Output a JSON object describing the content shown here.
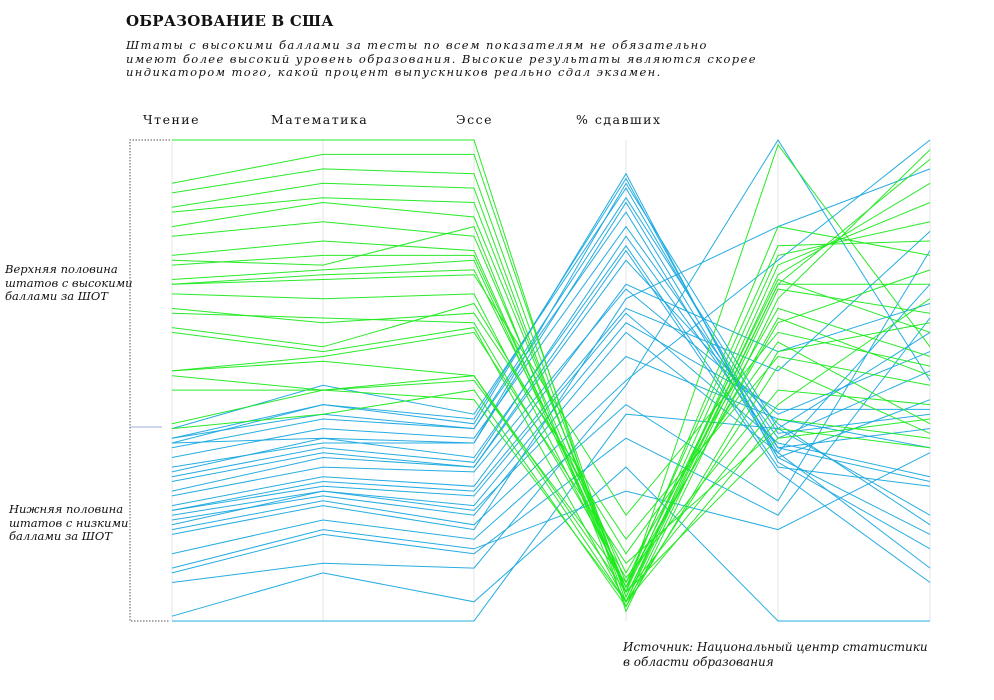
{
  "header": {
    "title": "ОБРАЗОВАНИЕ В США",
    "subtitle_lines": [
      "Штаты с высокими баллами за тесты по всем показателям не обязательно",
      "имеют более высокий уровень образования. Высокие результаты являются скорее",
      "индикатором того, какой процент выпускников реально сдал экзамен."
    ]
  },
  "groups": {
    "top_lines": [
      "Верхняя половина",
      "штатов с высокими",
      "баллами за ШОТ"
    ],
    "bottom_lines": [
      "Нижняя половина",
      "штатов с низкими",
      "баллами за ШОТ"
    ]
  },
  "source_lines": [
    "Источник: Национальный центр статистики",
    "в области образования"
  ],
  "colors": {
    "top_half": "#1ee91e",
    "bottom_half": "#1aa9df",
    "bracket": "#555555",
    "gridline": "#e6e6e6"
  },
  "chart_data": {
    "type": "parallel-coordinates",
    "axes": [
      "Чтение",
      "Математика",
      "Эссе",
      "% сдавших",
      "",
      ""
    ],
    "normalized": true,
    "series": [
      {
        "group": "top",
        "values": [
          0.0,
          0.0,
          0.0,
          0.98,
          0.33,
          0.02
        ]
      },
      {
        "group": "top",
        "values": [
          0.09,
          0.03,
          0.03,
          0.95,
          0.3,
          0.04
        ]
      },
      {
        "group": "top",
        "values": [
          0.11,
          0.06,
          0.07,
          0.95,
          0.28,
          0.09
        ]
      },
      {
        "group": "top",
        "values": [
          0.14,
          0.09,
          0.1,
          0.96,
          0.26,
          0.13
        ]
      },
      {
        "group": "top",
        "values": [
          0.15,
          0.12,
          0.13,
          0.94,
          0.24,
          0.17
        ]
      },
      {
        "group": "top",
        "values": [
          0.18,
          0.13,
          0.16,
          0.92,
          0.22,
          0.21
        ]
      },
      {
        "group": "top",
        "values": [
          0.2,
          0.17,
          0.2,
          0.93,
          0.18,
          0.24
        ]
      },
      {
        "group": "top",
        "values": [
          0.24,
          0.21,
          0.23,
          0.94,
          0.55,
          0.33
        ]
      },
      {
        "group": "top",
        "values": [
          0.25,
          0.26,
          0.18,
          0.97,
          0.31,
          0.36
        ]
      },
      {
        "group": "top",
        "values": [
          0.26,
          0.24,
          0.24,
          0.93,
          0.29,
          0.4
        ]
      },
      {
        "group": "top",
        "values": [
          0.29,
          0.27,
          0.25,
          0.94,
          0.01,
          0.43
        ]
      },
      {
        "group": "top",
        "values": [
          0.3,
          0.28,
          0.27,
          0.9,
          0.35,
          0.45
        ]
      },
      {
        "group": "top",
        "values": [
          0.3,
          0.29,
          0.28,
          0.78,
          0.4,
          0.47
        ]
      },
      {
        "group": "top",
        "values": [
          0.32,
          0.33,
          0.32,
          0.93,
          0.37,
          0.49
        ]
      },
      {
        "group": "top",
        "values": [
          0.35,
          0.38,
          0.36,
          0.83,
          0.45,
          0.51
        ]
      },
      {
        "group": "top",
        "values": [
          0.36,
          0.37,
          0.38,
          0.91,
          0.52,
          0.55
        ]
      },
      {
        "group": "top",
        "values": [
          0.39,
          0.43,
          0.34,
          0.86,
          0.42,
          0.59
        ]
      },
      {
        "group": "top",
        "values": [
          0.4,
          0.44,
          0.39,
          0.96,
          0.58,
          0.62
        ]
      },
      {
        "group": "top",
        "values": [
          0.48,
          0.45,
          0.4,
          0.88,
          0.6,
          0.64
        ]
      },
      {
        "group": "top",
        "values": [
          0.48,
          0.46,
          0.49,
          0.94,
          0.62,
          0.58
        ]
      },
      {
        "group": "top",
        "values": [
          0.49,
          0.52,
          0.49,
          0.96,
          0.47,
          0.61
        ]
      },
      {
        "group": "top",
        "values": [
          0.52,
          0.52,
          0.5,
          0.92,
          0.38,
          0.27
        ]
      },
      {
        "group": "top",
        "values": [
          0.59,
          0.52,
          0.54,
          0.96,
          0.3,
          0.3
        ]
      },
      {
        "group": "top",
        "values": [
          0.6,
          0.57,
          0.52,
          0.97,
          0.44,
          0.38
        ]
      },
      {
        "group": "bottom",
        "values": [
          0.6,
          0.51,
          0.57,
          0.1,
          0.64,
          0.71
        ]
      },
      {
        "group": "bottom",
        "values": [
          0.62,
          0.55,
          0.58,
          0.08,
          0.66,
          0.82
        ]
      },
      {
        "group": "bottom",
        "values": [
          0.62,
          0.57,
          0.6,
          0.12,
          0.61,
          0.57
        ]
      },
      {
        "group": "bottom",
        "values": [
          0.63,
          0.55,
          0.59,
          0.07,
          0.67,
          0.85
        ]
      },
      {
        "group": "bottom",
        "values": [
          0.63,
          0.62,
          0.63,
          0.13,
          0.65,
          0.89
        ]
      },
      {
        "group": "bottom",
        "values": [
          0.64,
          0.58,
          0.6,
          0.15,
          0.66,
          0.54
        ]
      },
      {
        "group": "bottom",
        "values": [
          0.66,
          0.6,
          0.62,
          0.18,
          0.62,
          0.48
        ]
      },
      {
        "group": "bottom",
        "values": [
          0.68,
          0.63,
          0.63,
          0.09,
          0.6,
          0.4
        ]
      },
      {
        "group": "bottom",
        "values": [
          0.69,
          0.62,
          0.66,
          0.22,
          0.68,
          0.72
        ]
      },
      {
        "group": "bottom",
        "values": [
          0.7,
          0.64,
          0.67,
          0.2,
          0.64,
          0.6
        ]
      },
      {
        "group": "bottom",
        "values": [
          0.71,
          0.65,
          0.68,
          0.23,
          0.69,
          0.92
        ]
      },
      {
        "group": "bottom",
        "values": [
          0.73,
          0.66,
          0.68,
          0.25,
          0.59,
          0.8
        ]
      },
      {
        "group": "bottom",
        "values": [
          0.74,
          0.68,
          0.69,
          0.31,
          0.57,
          0.44
        ]
      },
      {
        "group": "bottom",
        "values": [
          0.76,
          0.7,
          0.72,
          0.3,
          0.44,
          0.34
        ]
      },
      {
        "group": "bottom",
        "values": [
          0.77,
          0.71,
          0.73,
          0.35,
          0.48,
          0.19
        ]
      },
      {
        "group": "bottom",
        "values": [
          0.77,
          0.72,
          0.74,
          0.36,
          0.63,
          0.7
        ]
      },
      {
        "group": "bottom",
        "values": [
          0.78,
          0.73,
          0.76,
          0.38,
          0.56,
          0.56
        ]
      },
      {
        "group": "bottom",
        "values": [
          0.79,
          0.74,
          0.78,
          0.4,
          0.65,
          0.3
        ]
      },
      {
        "group": "bottom",
        "values": [
          0.8,
          0.73,
          0.77,
          0.45,
          0.58,
          0.64
        ]
      },
      {
        "group": "bottom",
        "values": [
          0.81,
          0.75,
          0.8,
          0.5,
          0.25,
          0.0
        ]
      },
      {
        "group": "bottom",
        "values": [
          0.82,
          0.76,
          0.81,
          0.33,
          0.18,
          0.06
        ]
      },
      {
        "group": "bottom",
        "values": [
          0.86,
          0.79,
          0.83,
          0.55,
          0.75,
          0.23
        ]
      },
      {
        "group": "bottom",
        "values": [
          0.89,
          0.81,
          0.85,
          0.73,
          0.81,
          0.65
        ]
      },
      {
        "group": "bottom",
        "values": [
          0.9,
          0.82,
          0.86,
          0.62,
          0.78,
          0.37
        ]
      },
      {
        "group": "bottom",
        "values": [
          0.92,
          0.88,
          0.89,
          0.51,
          0.0,
          0.5
        ]
      },
      {
        "group": "bottom",
        "values": [
          0.99,
          0.9,
          0.96,
          0.68,
          1.0,
          1.0
        ]
      },
      {
        "group": "bottom",
        "values": [
          1.0,
          1.0,
          1.0,
          0.57,
          0.6,
          0.78
        ]
      }
    ]
  }
}
